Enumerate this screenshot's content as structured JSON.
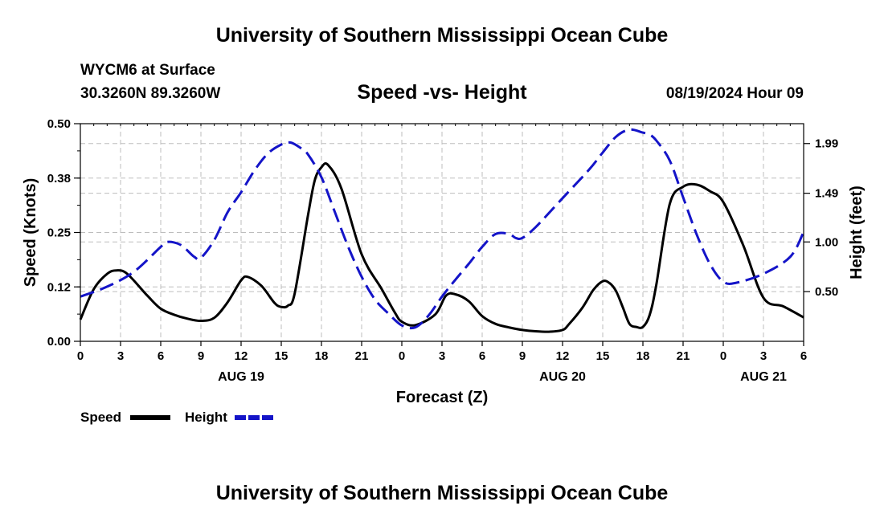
{
  "header": {
    "title": "University of Southern Mississippi Ocean Cube",
    "station": "WYCM6 at Surface",
    "coords": "30.3260N  89.3260W",
    "subtitle": "Speed -vs- Height",
    "datetime": "08/19/2024 Hour 09"
  },
  "footer": {
    "title": "University of Southern Mississippi Ocean Cube"
  },
  "chart_data": {
    "type": "line",
    "title": "Speed -vs- Height",
    "xlabel": "Forecast (Z)",
    "ylabel": "Speed (Knots)",
    "y2label": "Height (feet)",
    "xlim": [
      0,
      54
    ],
    "ylim": [
      0,
      0.5
    ],
    "y2lim": [
      0.0,
      2.19
    ],
    "x_ticks": [
      0,
      3,
      6,
      9,
      12,
      15,
      18,
      21,
      24,
      27,
      30,
      33,
      36,
      39,
      42,
      45,
      48,
      51,
      54
    ],
    "x_tick_labels": [
      "0",
      "3",
      "6",
      "9",
      "12",
      "15",
      "18",
      "21",
      "0",
      "3",
      "6",
      "9",
      "12",
      "15",
      "18",
      "21",
      "0",
      "3",
      "6"
    ],
    "day_labels": [
      {
        "x": 12,
        "label": "AUG 19"
      },
      {
        "x": 36,
        "label": "AUG 20"
      },
      {
        "x": 51,
        "label": "AUG 21"
      }
    ],
    "y_ticks": [
      0,
      0.125,
      0.25,
      0.375,
      0.5
    ],
    "y_tick_labels": [
      "0.00",
      "0.12",
      "0.25",
      "0.38",
      "0.50"
    ],
    "y2_ticks": [
      0.5,
      1.0,
      1.49,
      1.99
    ],
    "y2_tick_labels": [
      "0.50",
      "1.00",
      "1.49",
      "1.99"
    ],
    "grid": true,
    "legend": [
      {
        "label": "Speed",
        "color": "#000000",
        "dash": "solid"
      },
      {
        "label": "Height",
        "color": "#1414c8",
        "dash": "dashed"
      }
    ],
    "series": [
      {
        "name": "Speed",
        "axis": "left",
        "color": "#000000",
        "x": [
          0,
          1,
          2,
          2.7,
          3.5,
          5,
          6,
          7,
          8,
          9,
          10,
          11,
          12,
          12.5,
          13.5,
          14.5,
          15,
          15.5,
          16,
          17,
          17.5,
          18,
          18.5,
          19.5,
          21,
          22.5,
          23.5,
          24,
          25,
          26.5,
          27.3,
          28,
          29,
          30,
          31,
          32,
          33,
          34,
          35,
          36,
          36.5,
          37.5,
          38.3,
          39,
          39.5,
          40,
          40.5,
          41,
          41.5,
          42,
          42.5,
          43,
          44,
          45,
          46,
          47,
          48,
          49.5,
          51,
          52.5,
          54
        ],
        "values": [
          0.05,
          0.12,
          0.155,
          0.163,
          0.155,
          0.105,
          0.075,
          0.061,
          0.052,
          0.047,
          0.054,
          0.09,
          0.14,
          0.148,
          0.128,
          0.088,
          0.079,
          0.082,
          0.11,
          0.29,
          0.37,
          0.4,
          0.405,
          0.35,
          0.2,
          0.12,
          0.065,
          0.045,
          0.037,
          0.062,
          0.105,
          0.108,
          0.092,
          0.058,
          0.04,
          0.032,
          0.026,
          0.023,
          0.022,
          0.026,
          0.04,
          0.078,
          0.118,
          0.138,
          0.134,
          0.115,
          0.078,
          0.04,
          0.033,
          0.033,
          0.06,
          0.13,
          0.315,
          0.355,
          0.36,
          0.345,
          0.32,
          0.22,
          0.1,
          0.08,
          0.055
        ]
      },
      {
        "name": "Height",
        "axis": "right",
        "color": "#1414c8",
        "x": [
          0,
          2,
          4,
          6,
          6.5,
          7.5,
          8.5,
          9,
          10,
          11,
          12,
          13,
          14,
          15,
          15.7,
          16.5,
          17,
          18,
          19,
          20,
          21,
          22,
          23,
          24,
          25,
          26,
          27,
          28,
          29,
          30,
          31,
          32,
          32.5,
          33,
          34,
          36,
          38,
          39,
          40,
          41,
          42,
          42.5,
          43,
          44,
          45,
          46,
          47,
          48,
          49,
          51,
          53,
          54
        ],
        "values": [
          0.45,
          0.55,
          0.7,
          0.95,
          1.0,
          0.97,
          0.85,
          0.84,
          1.02,
          1.3,
          1.5,
          1.72,
          1.89,
          1.98,
          2.0,
          1.94,
          1.88,
          1.65,
          1.3,
          0.95,
          0.65,
          0.42,
          0.28,
          0.16,
          0.14,
          0.26,
          0.45,
          0.62,
          0.78,
          0.95,
          1.08,
          1.08,
          1.04,
          1.04,
          1.15,
          1.44,
          1.73,
          1.9,
          2.06,
          2.13,
          2.1,
          2.08,
          2.02,
          1.82,
          1.45,
          1.08,
          0.78,
          0.6,
          0.59,
          0.68,
          0.85,
          1.1
        ]
      }
    ]
  }
}
